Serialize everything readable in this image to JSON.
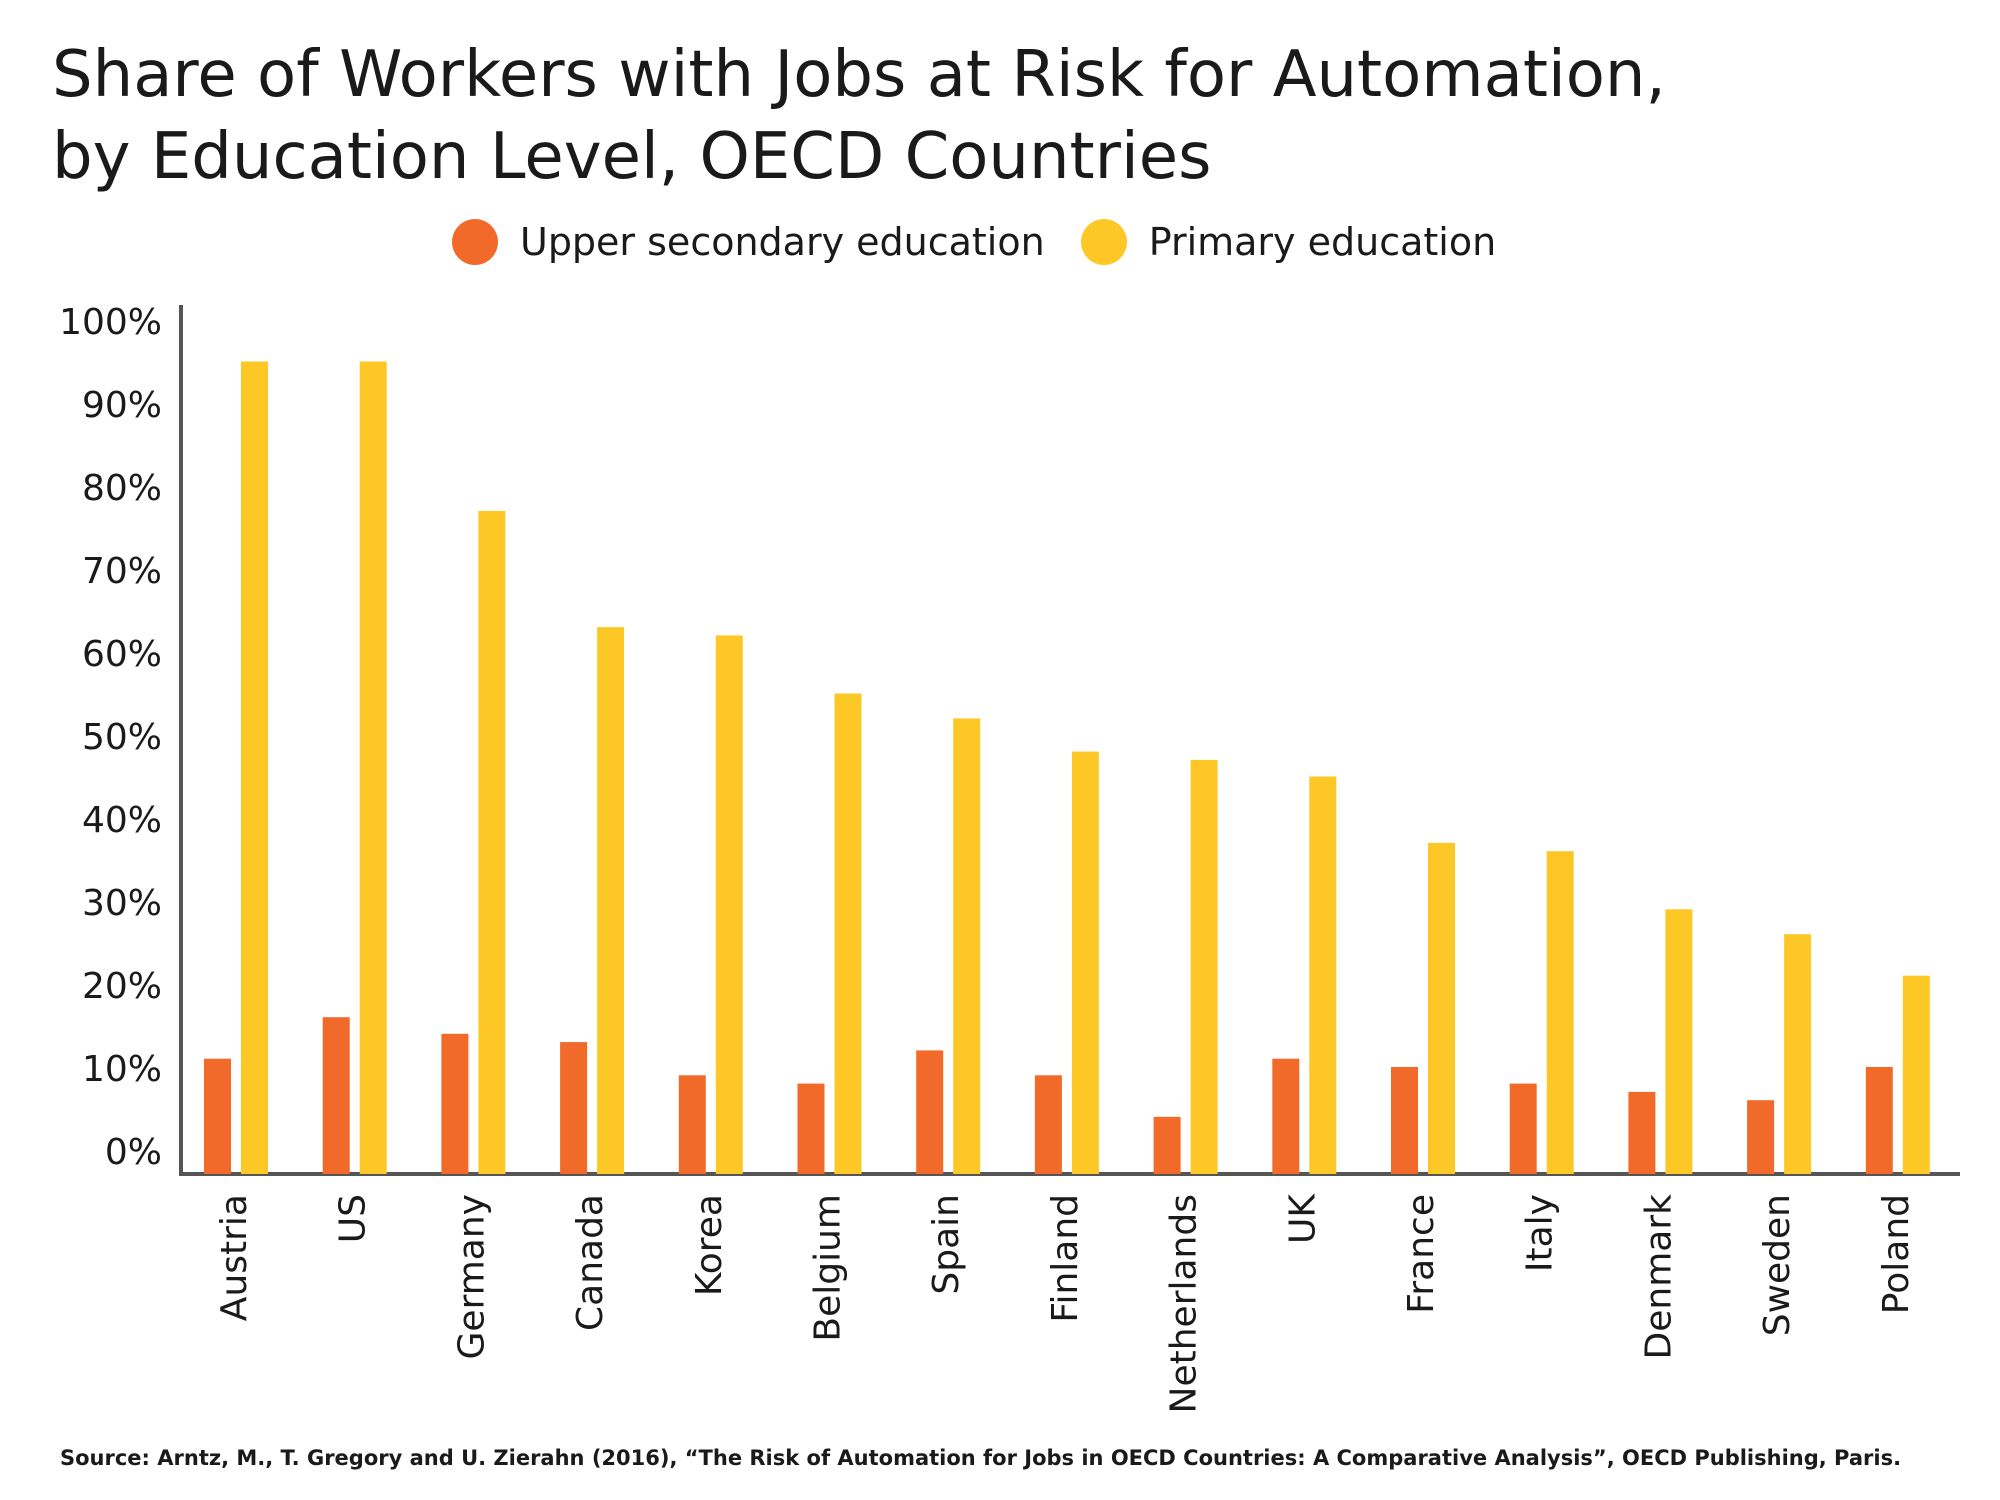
{
  "chart_data": {
    "type": "bar",
    "title_lines": [
      "Share of Workers with Jobs at Risk for Automation,",
      "by Education Level, OECD Countries"
    ],
    "categories": [
      "Austria",
      "US",
      "Germany",
      "Canada",
      "Korea",
      "Belgium",
      "Spain",
      "Finland",
      "Netherlands",
      "UK",
      "France",
      "Italy",
      "Denmark",
      "Sweden",
      "Poland"
    ],
    "series": [
      {
        "name": "Upper secondary education",
        "color": "#f26a2a",
        "values": [
          11,
          16,
          14,
          13,
          9,
          8,
          12,
          9,
          4,
          11,
          10,
          8,
          7,
          6,
          10
        ]
      },
      {
        "name": "Primary education",
        "color": "#fdc826",
        "values": [
          95,
          95,
          77,
          63,
          62,
          55,
          52,
          48,
          47,
          45,
          37,
          36,
          29,
          26,
          21
        ]
      }
    ],
    "ylim": [
      0,
      100
    ],
    "yticks": [
      "0%",
      "10%",
      "20%",
      "30%",
      "40%",
      "50%",
      "60%",
      "70%",
      "80%",
      "90%",
      "100%"
    ],
    "grid": false,
    "legend_position": "top-center",
    "source": "Source:  Arntz, M., T. Gregory and U. Zierahn (2016), “The Risk of Automation for Jobs in OECD Countries: A Comparative Analysis”, OECD Publishing, Paris."
  }
}
